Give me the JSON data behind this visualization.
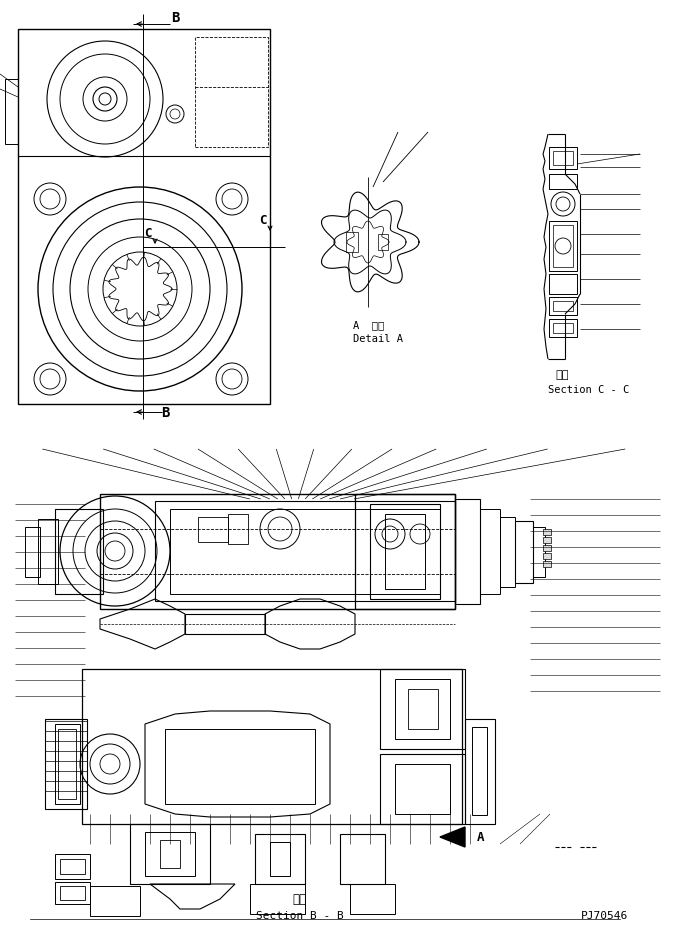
{
  "bg_color": "#ffffff",
  "line_color": "#000000",
  "fig_width": 6.76,
  "fig_height": 9.45,
  "dpi": 100,
  "bottom_text_1": "断面",
  "bottom_text_2": "Section B - B",
  "bottom_right_text": "PJ70546",
  "detail_a_label_jp": "A  詳細",
  "detail_a_label_en": "Detail A",
  "section_cc_label_jp": "断面",
  "section_cc_label_en": "Section C - C",
  "label_B": "B",
  "label_C": "C",
  "label_A": "A"
}
